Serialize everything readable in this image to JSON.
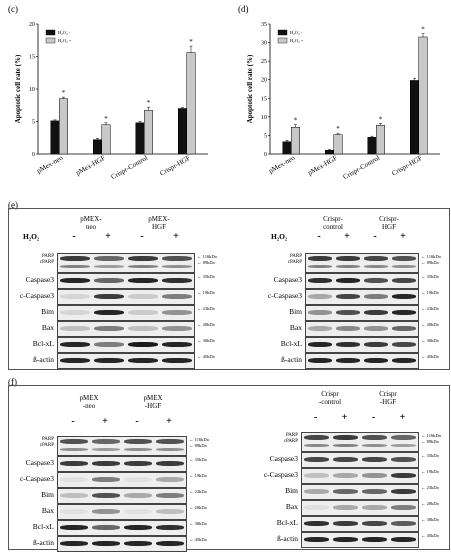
{
  "panels": {
    "c": {
      "letter": "(c)",
      "chart_data": {
        "type": "bar",
        "ylabel": "Apoptotic cell rate (%)",
        "ylim": [
          0,
          20
        ],
        "yticks": [
          0,
          5,
          10,
          15,
          20
        ],
        "categories": [
          "pMex-neo",
          "pMex-HGF",
          "Crispr-Control",
          "Crispr-HGF"
        ],
        "series": [
          {
            "name": "H₂O₂ -",
            "color": "#111111",
            "values": [
              5.1,
              2.2,
              4.8,
              7.0
            ],
            "errors": [
              0.15,
              0.2,
              0.2,
              0.15
            ]
          },
          {
            "name": "H₂O₂ +",
            "color": "#c8c8c8",
            "values": [
              8.5,
              4.5,
              6.7,
              15.6
            ],
            "errors": [
              0.25,
              0.3,
              0.5,
              1.0
            ]
          }
        ],
        "annotations": [
          "*",
          "*",
          "*",
          "*"
        ],
        "legend_position": "top-left"
      }
    },
    "d": {
      "letter": "(d)",
      "chart_data": {
        "type": "bar",
        "ylabel": "Apoptotic cell rate (%)",
        "ylim": [
          0,
          35
        ],
        "yticks": [
          0,
          5,
          10,
          15,
          20,
          25,
          30,
          35
        ],
        "categories": [
          "pMex-neo",
          "pMex-HGF",
          "Crispr-Control",
          "Crispr-HGF"
        ],
        "series": [
          {
            "name": "H₂O₂ -",
            "color": "#111111",
            "values": [
              3.3,
              1.0,
              4.5,
              19.8
            ],
            "errors": [
              0.4,
              0.2,
              0.3,
              0.6
            ]
          },
          {
            "name": "H₂O₂ +",
            "color": "#c8c8c8",
            "values": [
              7.2,
              5.2,
              7.7,
              31.5
            ],
            "errors": [
              0.7,
              0.4,
              0.5,
              0.9
            ]
          }
        ],
        "annotations": [
          "*",
          "*",
          "*",
          "*"
        ],
        "legend_position": "top-left"
      }
    },
    "e": {
      "letter": "(e)",
      "treatment_label": "H₂O₂",
      "left": {
        "groups": [
          "pMEX-\nneo",
          "pMEX-\nHGF"
        ],
        "signs": [
          "-",
          "+",
          "-",
          "+"
        ],
        "rows": [
          "PARP\ncPARP",
          "Caspase3",
          "c-Caspase3",
          "Bim",
          "Bax",
          "Bcl-xL",
          "ß-actin"
        ],
        "kda": [
          [
            "116kDa",
            "89kDa"
          ],
          [
            "35kDa"
          ],
          [
            "19kDa"
          ],
          [
            "23kDa"
          ],
          [
            "20kDa"
          ],
          [
            "30kDa"
          ],
          [
            "45kDa"
          ]
        ]
      },
      "right": {
        "groups": [
          "Crispr-\ncontrol",
          "Crispr-\nHGF"
        ],
        "signs": [
          "-",
          "+",
          "-",
          "+"
        ],
        "rows": [
          "PARP\ncPARP",
          "Caspase3",
          "c-Caspase3",
          "Bim",
          "Bax",
          "Bcl-xL",
          "ß-actin"
        ],
        "kda": [
          [
            "116kDa",
            "89kDa"
          ],
          [
            "35kDa"
          ],
          [
            "19kDa"
          ],
          [
            "23kDa"
          ],
          [
            "20kDa"
          ],
          [
            "30kDa"
          ],
          [
            "45kDa"
          ]
        ]
      }
    },
    "f": {
      "letter": "(f)",
      "left": {
        "groups": [
          "pMEX\n-neo",
          "pMEX\n-HGF"
        ],
        "signs": [
          "-",
          "+",
          "-",
          "+"
        ],
        "rows": [
          "PARP\ncPARP",
          "Caspase3",
          "c-Caspase3",
          "Bim",
          "Bax",
          "Bcl-xL",
          "ß-actin"
        ],
        "kda": [
          [
            "116kDa",
            "89kDa"
          ],
          [
            "35kDa"
          ],
          [
            "19kDa"
          ],
          [
            "23kDa"
          ],
          [
            "20kDa"
          ],
          [
            "30kDa"
          ],
          [
            "45kDa"
          ]
        ]
      },
      "right": {
        "groups": [
          "Crispr\n-control",
          "Crispr\n-HGF"
        ],
        "signs": [
          "-",
          "+",
          "-",
          "+"
        ],
        "rows": [
          "PARP\ncPARP",
          "Caspase3",
          "c-Caspase3",
          "Bim",
          "Bax",
          "Bcl-xL",
          "ß-actin"
        ],
        "kda": [
          [
            "116kDa",
            "89kDa"
          ],
          [
            "35kDa"
          ],
          [
            "19kDa"
          ],
          [
            "23kDa"
          ],
          [
            "20kDa"
          ],
          [
            "30kDa"
          ],
          [
            "45kDa"
          ]
        ]
      }
    }
  }
}
